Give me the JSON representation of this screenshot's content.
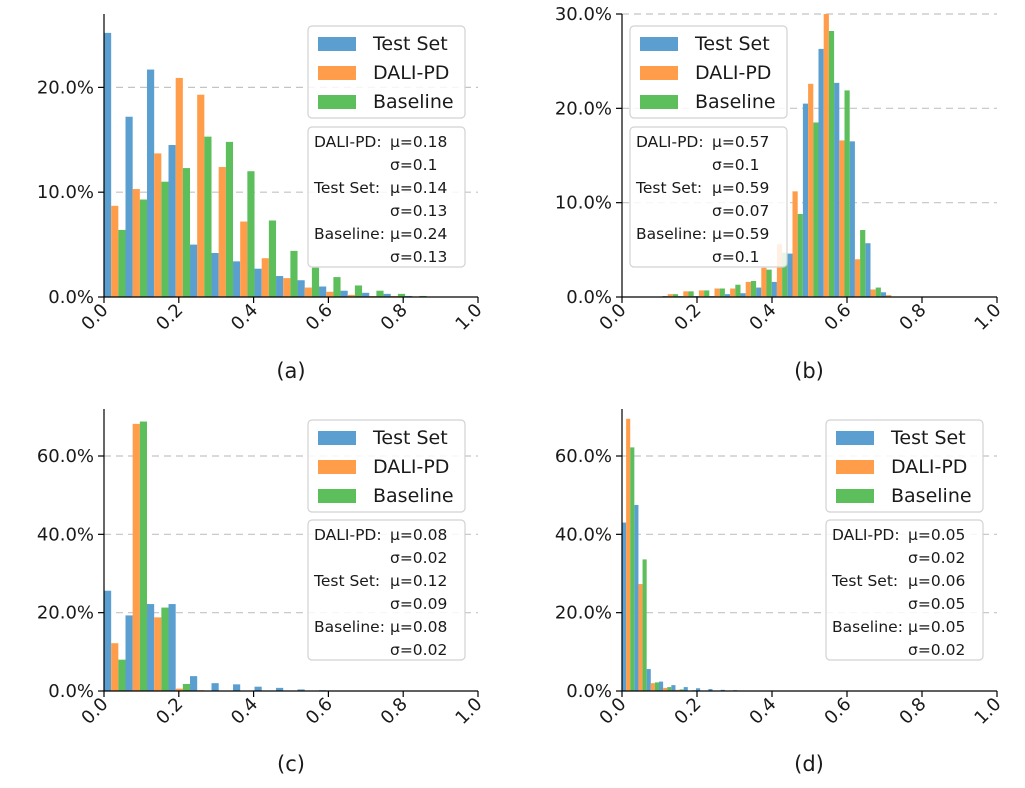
{
  "colors": {
    "test_set": "#5a9fd0",
    "dali_pd": "#ff9d4a",
    "baseline": "#5cbf5c"
  },
  "chart_data": [
    {
      "type": "bar",
      "caption": "(a)",
      "xlim": [
        0,
        1
      ],
      "ylim": [
        0,
        0.27
      ],
      "xticks": [
        "0.0",
        "0.2",
        "0.4",
        "0.6",
        "0.8",
        "1.0"
      ],
      "yticks": [
        {
          "value": 0.0,
          "label": "0.0%"
        },
        {
          "value": 0.1,
          "label": "10.0%"
        },
        {
          "value": 0.2,
          "label": "20.0%"
        }
      ],
      "bin_width": 0.0575,
      "bin_starts": [
        0.0,
        0.0575,
        0.115,
        0.1725,
        0.23,
        0.2875,
        0.345,
        0.4025,
        0.46,
        0.5175,
        0.575,
        0.6325,
        0.69,
        0.7475,
        0.805
      ],
      "series": [
        {
          "name": "Test Set",
          "values": [
            0.252,
            0.172,
            0.217,
            0.145,
            0.05,
            0.042,
            0.034,
            0.027,
            0.02,
            0.016,
            0.01,
            0.006,
            0.004,
            0.003,
            0.001
          ]
        },
        {
          "name": "DALI-PD",
          "values": [
            0.087,
            0.103,
            0.137,
            0.209,
            0.193,
            0.124,
            0.072,
            0.037,
            0.018,
            0.009,
            0.005,
            0.002,
            0.001,
            0.001,
            0.0005
          ]
        },
        {
          "name": "Baseline",
          "values": [
            0.064,
            0.093,
            0.11,
            0.123,
            0.153,
            0.148,
            0.12,
            0.073,
            0.044,
            0.028,
            0.019,
            0.011,
            0.006,
            0.003,
            0.001
          ]
        }
      ],
      "legend": [
        "Test Set",
        "DALI-PD",
        "Baseline"
      ],
      "stats": [
        {
          "name": "DALI-PD:",
          "mu": "μ=0.18",
          "sigma": "σ=0.1"
        },
        {
          "name": "Test Set:",
          "mu": "μ=0.14",
          "sigma": "σ=0.13"
        },
        {
          "name": "Baseline:",
          "mu": "μ=0.24",
          "sigma": "σ=0.13"
        }
      ]
    },
    {
      "type": "bar",
      "caption": "(b)",
      "xlim": [
        0,
        1
      ],
      "ylim": [
        0,
        0.3
      ],
      "xticks": [
        "0.0",
        "0.2",
        "0.4",
        "0.6",
        "0.8",
        "1.0"
      ],
      "yticks": [
        {
          "value": 0.0,
          "label": "0.0%"
        },
        {
          "value": 0.1,
          "label": "10.0%"
        },
        {
          "value": 0.2,
          "label": "20.0%"
        },
        {
          "value": 0.3,
          "label": "30.0%"
        }
      ],
      "bin_width": 0.0416,
      "bin_starts": [
        0.108,
        0.1496,
        0.1912,
        0.2328,
        0.2744,
        0.316,
        0.3576,
        0.3992,
        0.4408,
        0.4824,
        0.524,
        0.5656,
        0.6072,
        0.6488,
        0.6904,
        0.732,
        0.7736
      ],
      "series": [
        {
          "name": "Test Set",
          "values": [
            0.001,
            0.001,
            0.001,
            0.001,
            0.003,
            0.004,
            0.01,
            0.016,
            0.046,
            0.205,
            0.263,
            0.227,
            0.165,
            0.057,
            0.005,
            0.0,
            0.0
          ]
        },
        {
          "name": "DALI-PD",
          "values": [
            0.003,
            0.006,
            0.007,
            0.009,
            0.009,
            0.016,
            0.031,
            0.056,
            0.112,
            0.226,
            0.3,
            0.166,
            0.04,
            0.008,
            0.002,
            0.0,
            0.0
          ]
        },
        {
          "name": "Baseline",
          "values": [
            0.003,
            0.006,
            0.007,
            0.009,
            0.013,
            0.017,
            0.029,
            0.047,
            0.088,
            0.185,
            0.282,
            0.219,
            0.071,
            0.01,
            0.0,
            0.0,
            0.0
          ]
        }
      ],
      "legend": [
        "Test Set",
        "DALI-PD",
        "Baseline"
      ],
      "stats": [
        {
          "name": "DALI-PD:",
          "mu": "μ=0.57",
          "sigma": "σ=0.1"
        },
        {
          "name": "Test Set:",
          "mu": "μ=0.59",
          "sigma": "σ=0.07"
        },
        {
          "name": "Baseline:",
          "mu": "μ=0.59",
          "sigma": "σ=0.1"
        }
      ]
    },
    {
      "type": "bar",
      "caption": "(c)",
      "xlim": [
        0,
        1
      ],
      "ylim": [
        0,
        0.72
      ],
      "xticks": [
        "0.0",
        "0.2",
        "0.4",
        "0.6",
        "0.8",
        "1.0"
      ],
      "yticks": [
        {
          "value": 0.0,
          "label": "0.0%"
        },
        {
          "value": 0.2,
          "label": "20.0%"
        },
        {
          "value": 0.4,
          "label": "40.0%"
        },
        {
          "value": 0.6,
          "label": "60.0%"
        }
      ],
      "bin_width": 0.0575,
      "bin_starts": [
        0.0,
        0.0575,
        0.115,
        0.1725,
        0.23,
        0.2875,
        0.345,
        0.4025,
        0.46,
        0.5175,
        0.575
      ],
      "series": [
        {
          "name": "Test Set",
          "values": [
            0.256,
            0.193,
            0.222,
            0.222,
            0.038,
            0.02,
            0.017,
            0.011,
            0.008,
            0.004,
            0.002
          ]
        },
        {
          "name": "DALI-PD",
          "values": [
            0.122,
            0.682,
            0.188,
            0.006,
            0.002,
            0.0,
            0.0,
            0.0,
            0.0,
            0.0,
            0.0
          ]
        },
        {
          "name": "Baseline",
          "values": [
            0.08,
            0.688,
            0.213,
            0.018,
            0.001,
            0.0,
            0.0,
            0.0,
            0.0,
            0.0,
            0.0
          ]
        }
      ],
      "legend": [
        "Test Set",
        "DALI-PD",
        "Baseline"
      ],
      "stats": [
        {
          "name": "DALI-PD:",
          "mu": "μ=0.08",
          "sigma": "σ=0.02"
        },
        {
          "name": "Test Set:",
          "mu": "μ=0.12",
          "sigma": "σ=0.09"
        },
        {
          "name": "Baseline:",
          "mu": "μ=0.08",
          "sigma": "σ=0.02"
        }
      ]
    },
    {
      "type": "bar",
      "caption": "(d)",
      "xlim": [
        0,
        1
      ],
      "ylim": [
        0,
        0.72
      ],
      "xticks": [
        "0.0",
        "0.2",
        "0.4",
        "0.6",
        "0.8",
        "1.0"
      ],
      "yticks": [
        {
          "value": 0.0,
          "label": "0.0%"
        },
        {
          "value": 0.2,
          "label": "20.0%"
        },
        {
          "value": 0.4,
          "label": "40.0%"
        },
        {
          "value": 0.6,
          "label": "60.0%"
        }
      ],
      "bin_width": 0.0329,
      "bin_starts": [
        0.0,
        0.0329,
        0.0658,
        0.0987,
        0.1316,
        0.1645,
        0.1974,
        0.2303,
        0.2632,
        0.2961
      ],
      "series": [
        {
          "name": "Test Set",
          "values": [
            0.43,
            0.475,
            0.056,
            0.024,
            0.015,
            0.01,
            0.007,
            0.005,
            0.003,
            0.002
          ]
        },
        {
          "name": "DALI-PD",
          "values": [
            0.695,
            0.273,
            0.02,
            0.008,
            0.003,
            0.001,
            0.0,
            0.0,
            0.0,
            0.0
          ]
        },
        {
          "name": "Baseline",
          "values": [
            0.622,
            0.336,
            0.022,
            0.01,
            0.004,
            0.002,
            0.001,
            0.001,
            0.0,
            0.0
          ]
        }
      ],
      "legend": [
        "Test Set",
        "DALI-PD",
        "Baseline"
      ],
      "stats": [
        {
          "name": "DALI-PD:",
          "mu": "μ=0.05",
          "sigma": "σ=0.02"
        },
        {
          "name": "Test Set:",
          "mu": "μ=0.06",
          "sigma": "σ=0.05"
        },
        {
          "name": "Baseline:",
          "mu": "μ=0.05",
          "sigma": "σ=0.02"
        }
      ]
    }
  ]
}
